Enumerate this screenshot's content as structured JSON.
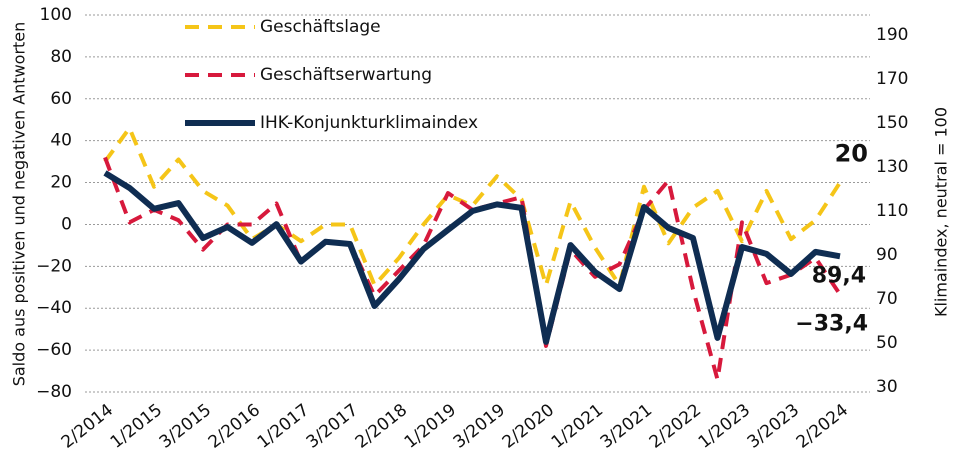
{
  "chart_data": {
    "type": "line",
    "ylabel": "Saldo aus positiven und negativen Antworten",
    "y2label": "Klimaindex, neutral = 100",
    "categories": [
      "2/2014",
      null,
      "1/2015",
      null,
      "3/2015",
      null,
      "2/2016",
      null,
      "1/2017",
      null,
      "3/2017",
      null,
      "2/2018",
      null,
      "1/2019",
      null,
      "3/2019",
      null,
      "2/2020",
      null,
      "1/2021",
      null,
      "3/2021",
      null,
      "2/2022",
      null,
      "1/2023",
      null,
      "3/2023",
      null,
      "2/2024"
    ],
    "ylim": [
      -80,
      100
    ],
    "yticks": [
      {
        "value": -80,
        "label": "−80"
      },
      {
        "value": -60,
        "label": "−60"
      },
      {
        "value": -40,
        "label": "−40"
      },
      {
        "value": -20,
        "label": "−20"
      },
      0,
      20,
      40,
      60,
      80,
      100
    ],
    "y2lim": [
      27.7,
      199.1
    ],
    "y2ticks": [
      30,
      50,
      70,
      90,
      110,
      130,
      150,
      170,
      190
    ],
    "grid": true,
    "legend": "top-left",
    "series": [
      {
        "name": "Geschäftslage",
        "color": "#f5c518",
        "dash": true,
        "values": [
          30,
          46,
          18,
          31,
          16,
          9,
          -7,
          0,
          -8,
          0,
          0,
          -29,
          -16,
          0,
          14,
          9,
          23,
          12,
          -29,
          11,
          -11,
          -29,
          18,
          -9,
          8,
          16,
          -8,
          16,
          -7,
          2,
          20
        ],
        "value_labels": [
          null,
          null,
          null,
          null,
          null,
          null,
          null,
          null,
          null,
          null,
          null,
          null,
          null,
          null,
          null,
          null,
          null,
          null,
          null,
          null,
          null,
          null,
          null,
          null,
          null,
          null,
          null,
          null,
          null,
          null,
          "20"
        ]
      },
      {
        "name": "Geschäftserwartung",
        "color": "#d7193c",
        "dash": true,
        "values": [
          32,
          1,
          7,
          2,
          -12,
          0,
          0,
          10,
          -18,
          -8,
          -9,
          -34,
          -22,
          -10,
          15,
          7,
          10,
          13,
          -58,
          -12,
          -25,
          -19,
          7,
          21,
          -31,
          -74,
          1,
          -28,
          -24,
          -16,
          -33.4
        ],
        "value_labels": [
          null,
          null,
          null,
          null,
          null,
          null,
          null,
          null,
          null,
          null,
          null,
          null,
          null,
          null,
          null,
          null,
          null,
          null,
          null,
          null,
          null,
          null,
          null,
          null,
          null,
          null,
          null,
          null,
          null,
          null,
          "−33,4"
        ]
      },
      {
        "name": "IHK-Konjunkturklimaindex",
        "color": "#0f2d52",
        "dash": false,
        "axis": "y2",
        "values": [
          127.3,
          120.5,
          111,
          113.6,
          97.7,
          102.7,
          95.5,
          104,
          87,
          96,
          95,
          66.8,
          79,
          92.7,
          101.4,
          110,
          113,
          111.4,
          50.5,
          94.5,
          82.3,
          74.5,
          111.8,
          102.3,
          97.7,
          52.3,
          93.6,
          90.5,
          81.4,
          91.4,
          89.4
        ],
        "value_labels": [
          null,
          null,
          null,
          null,
          null,
          null,
          null,
          null,
          null,
          null,
          null,
          null,
          null,
          null,
          null,
          null,
          null,
          null,
          null,
          null,
          null,
          null,
          null,
          null,
          null,
          null,
          null,
          null,
          null,
          null,
          "89,4"
        ]
      }
    ]
  }
}
